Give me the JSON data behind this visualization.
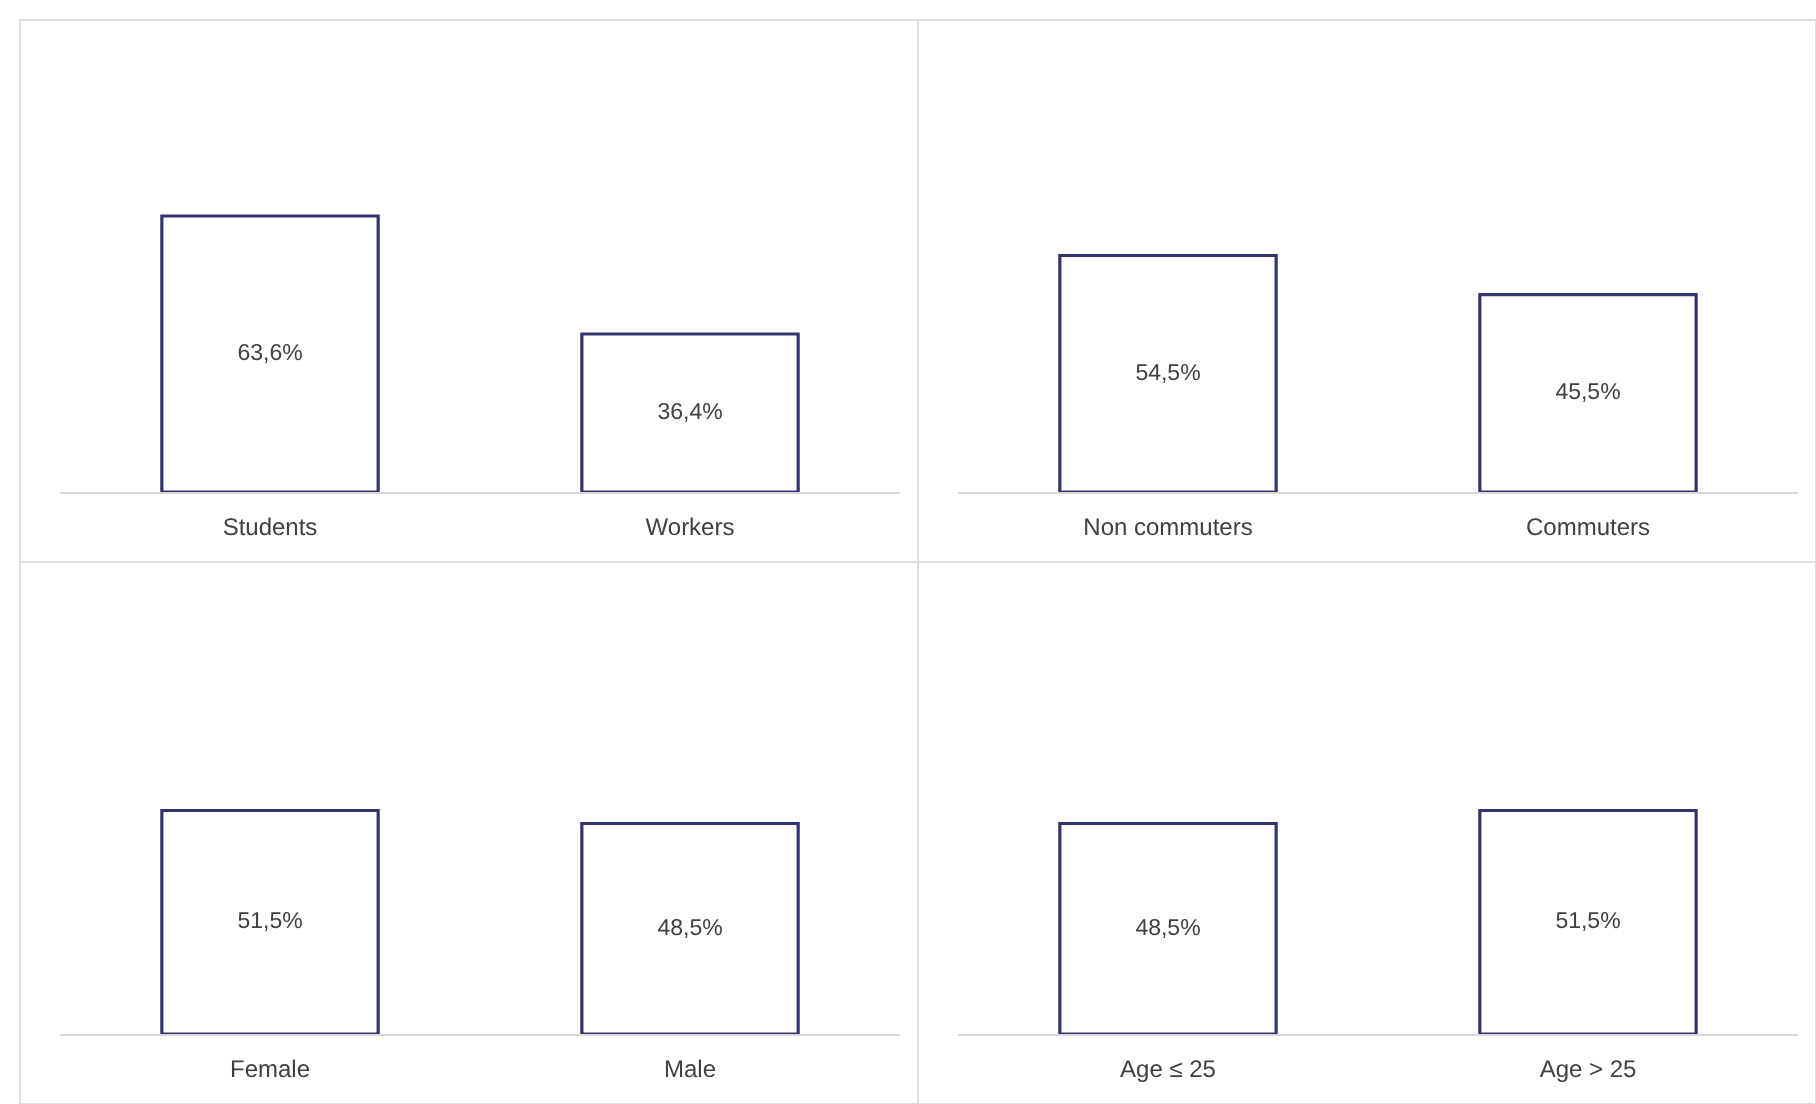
{
  "chart_data": [
    {
      "type": "bar",
      "categories": [
        "Students",
        "Workers"
      ],
      "values": [
        63.6,
        36.4
      ],
      "value_labels": [
        "63,6%",
        "36,4%"
      ],
      "color": "#34346e"
    },
    {
      "type": "bar",
      "categories": [
        "Non commuters",
        "Commuters"
      ],
      "values": [
        54.5,
        45.5
      ],
      "value_labels": [
        "54,5%",
        "45,5%"
      ],
      "color": "#34346e"
    },
    {
      "type": "bar",
      "categories": [
        "Female",
        "Male"
      ],
      "values": [
        51.5,
        48.5
      ],
      "value_labels": [
        "51,5%",
        "48,5%"
      ],
      "color": "#34346e"
    },
    {
      "type": "bar",
      "categories": [
        "Age ≤ 25",
        "Age > 25"
      ],
      "values": [
        48.5,
        51.5
      ],
      "value_labels": [
        "48,5%",
        "51,5%"
      ],
      "color": "#34346e"
    }
  ]
}
